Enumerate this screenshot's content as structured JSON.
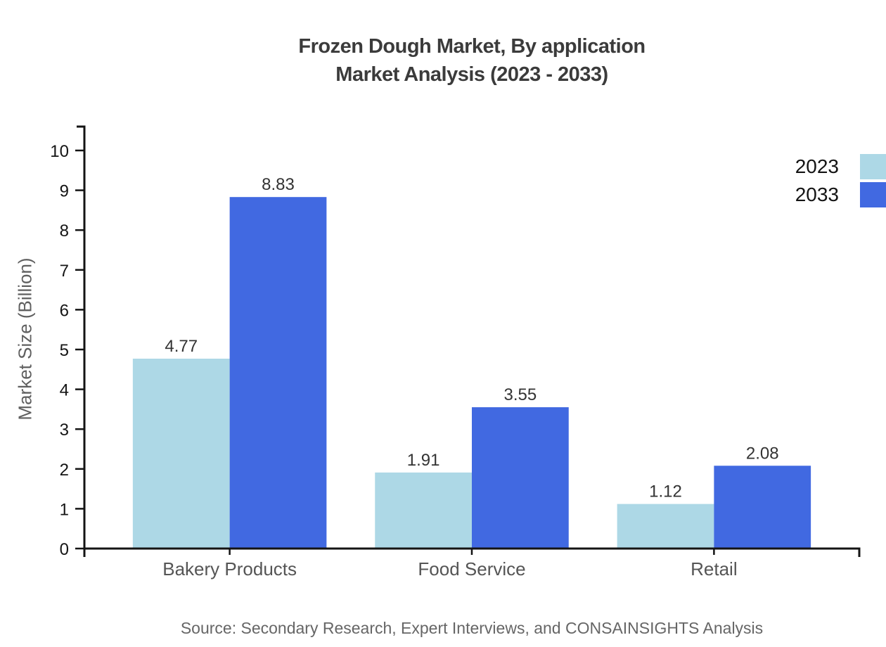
{
  "title": {
    "line1": "Frozen Dough Market, By application",
    "line2": "Market Analysis (2023 - 2033)"
  },
  "legend": [
    {
      "label": "2023",
      "color": "#ADD8E6"
    },
    {
      "label": "2033",
      "color": "#4169E1"
    }
  ],
  "source": "Source: Secondary Research, Expert Interviews, and CONSAINSIGHTS Analysis",
  "chart_data": {
    "type": "bar",
    "title": "Frozen Dough Market, By application Market Analysis (2023 - 2033)",
    "categories": [
      "Bakery Products",
      "Food Service",
      "Retail"
    ],
    "series": [
      {
        "name": "2023",
        "color": "#ADD8E6",
        "values": [
          4.77,
          1.91,
          1.12
        ]
      },
      {
        "name": "2033",
        "color": "#4169E1",
        "values": [
          8.83,
          3.55,
          2.08
        ]
      }
    ],
    "xlabel": "",
    "ylabel": "Market Size (Billion)",
    "ylim": [
      0,
      10.6
    ],
    "yticks": [
      0,
      1,
      2,
      3,
      4,
      5,
      6,
      7,
      8,
      9,
      10
    ],
    "value_labels": true,
    "grid": false,
    "legend_position": "top-right"
  }
}
